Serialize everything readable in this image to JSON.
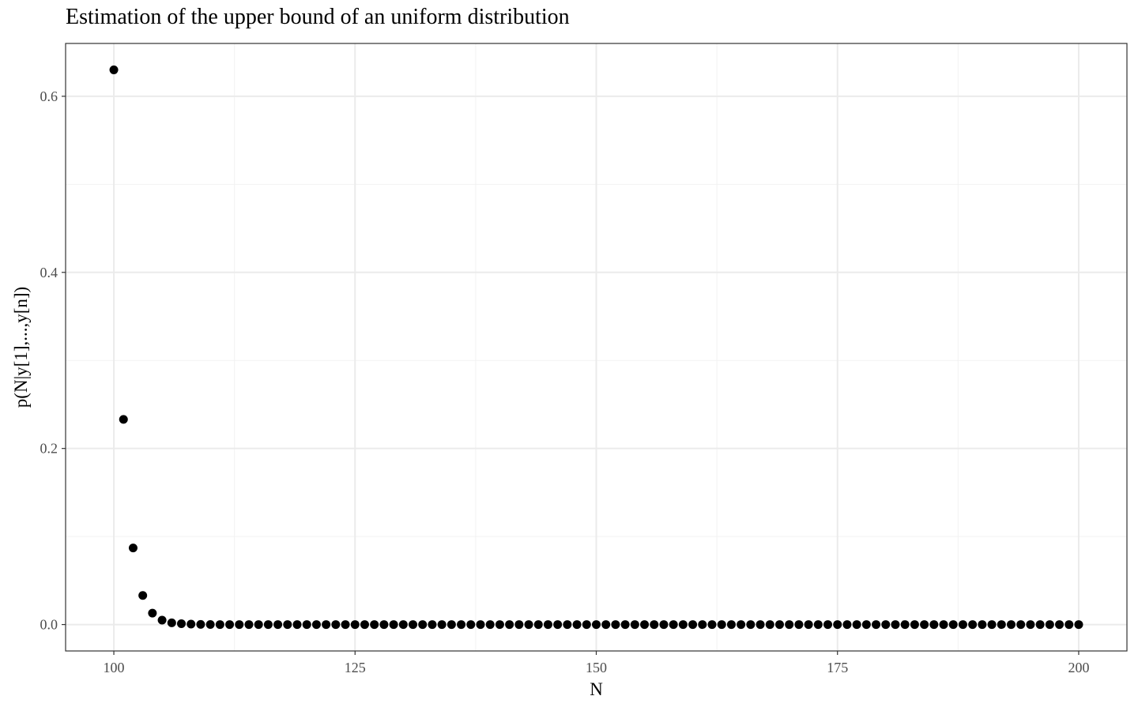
{
  "chart_data": {
    "type": "scatter",
    "title": "Estimation of the upper bound of an uniform distribution",
    "xlabel": "N",
    "ylabel": "p(N|y[1],...,y[n])",
    "xlim": [
      95,
      205
    ],
    "ylim": [
      -0.03,
      0.66
    ],
    "x_ticks": [
      100,
      125,
      150,
      175,
      200
    ],
    "x_tick_labels": [
      "100",
      "125",
      "150",
      "175",
      "200"
    ],
    "y_ticks": [
      0.0,
      0.2,
      0.4,
      0.6
    ],
    "y_tick_labels": [
      "0.0",
      "0.2",
      "0.4",
      "0.6"
    ],
    "x_minor_ticks": [
      112.5,
      137.5,
      162.5,
      187.5
    ],
    "y_minor_ticks": [
      0.1,
      0.3,
      0.5
    ],
    "grid": true,
    "point_color": "#000000",
    "x_start": 100,
    "x_end": 200,
    "y": [
      0.63,
      0.233,
      0.087,
      0.033,
      0.013,
      0.005,
      0.002,
      0.001,
      0.0005,
      0.0002,
      0.0001,
      0,
      0,
      0,
      0,
      0,
      0,
      0,
      0,
      0,
      0,
      0,
      0,
      0,
      0,
      0,
      0,
      0,
      0,
      0,
      0,
      0,
      0,
      0,
      0,
      0,
      0,
      0,
      0,
      0,
      0,
      0,
      0,
      0,
      0,
      0,
      0,
      0,
      0,
      0,
      0,
      0,
      0,
      0,
      0,
      0,
      0,
      0,
      0,
      0,
      0,
      0,
      0,
      0,
      0,
      0,
      0,
      0,
      0,
      0,
      0,
      0,
      0,
      0,
      0,
      0,
      0,
      0,
      0,
      0,
      0,
      0,
      0,
      0,
      0,
      0,
      0,
      0,
      0,
      0,
      0,
      0,
      0,
      0,
      0,
      0,
      0,
      0,
      0,
      0,
      0
    ]
  }
}
